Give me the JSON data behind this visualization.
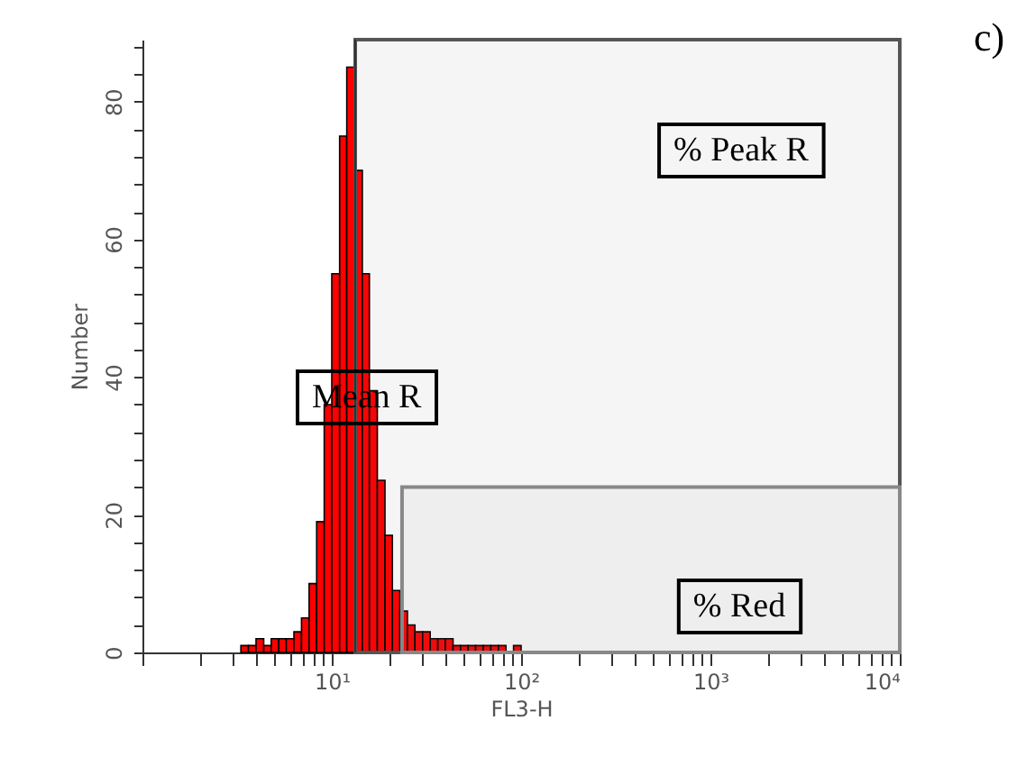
{
  "chart_data": {
    "type": "histogram",
    "xlabel": "FL3-H",
    "ylabel": "Number",
    "color": "#ff0000",
    "log": "x",
    "bins": [
      3.31,
      3.63,
      3.98,
      4.37,
      4.79,
      5.25,
      5.75,
      6.31,
      6.92,
      7.59,
      8.32,
      9.12,
      10.0,
      11.0,
      12.0,
      13.2,
      14.5,
      15.8,
      17.4,
      19.1,
      20.9,
      22.9,
      25.1,
      27.5,
      30.2,
      33.1,
      36.3,
      39.8,
      43.7,
      47.9,
      52.5,
      57.5,
      63.1,
      69.2,
      75.9,
      83.2,
      91.2,
      100
    ],
    "values": [
      1,
      1,
      2,
      1,
      2,
      2,
      2,
      3,
      5,
      10,
      19,
      36,
      55,
      75,
      85,
      70,
      55,
      38,
      25,
      17,
      9,
      6,
      4,
      3,
      3,
      2,
      2,
      2,
      1,
      1,
      1,
      1,
      1,
      1,
      1,
      0,
      1
    ],
    "xlim": [
      1,
      10000
    ],
    "ylim": [
      0,
      89
    ],
    "xticks": [
      {
        "value": 1,
        "label": null
      },
      {
        "value": 2,
        "label": null
      },
      {
        "value": 3,
        "label": null
      },
      {
        "value": 4,
        "label": null
      },
      {
        "value": 5,
        "label": null
      },
      {
        "value": 6,
        "label": null
      },
      {
        "value": 7,
        "label": null
      },
      {
        "value": 8,
        "label": null
      },
      {
        "value": 9,
        "label": null
      },
      {
        "value": 10,
        "label": "10¹"
      },
      {
        "value": 20,
        "label": null
      },
      {
        "value": 30,
        "label": null
      },
      {
        "value": 40,
        "label": null
      },
      {
        "value": 50,
        "label": null
      },
      {
        "value": 60,
        "label": null
      },
      {
        "value": 70,
        "label": null
      },
      {
        "value": 80,
        "label": null
      },
      {
        "value": 90,
        "label": null
      },
      {
        "value": 100,
        "label": "10²"
      },
      {
        "value": 200,
        "label": null
      },
      {
        "value": 300,
        "label": null
      },
      {
        "value": 400,
        "label": null
      },
      {
        "value": 500,
        "label": null
      },
      {
        "value": 600,
        "label": null
      },
      {
        "value": 700,
        "label": null
      },
      {
        "value": 800,
        "label": null
      },
      {
        "value": 900,
        "label": null
      },
      {
        "value": 1000,
        "label": "10³"
      },
      {
        "value": 2000,
        "label": null
      },
      {
        "value": 3000,
        "label": null
      },
      {
        "value": 4000,
        "label": null
      },
      {
        "value": 5000,
        "label": null
      },
      {
        "value": 6000,
        "label": null
      },
      {
        "value": 7000,
        "label": null
      },
      {
        "value": 8000,
        "label": null
      },
      {
        "value": 9000,
        "label": null
      },
      {
        "value": 10000,
        "label": "10⁴"
      }
    ],
    "yticks": [
      0,
      {
        "value": 4,
        "label": null
      },
      {
        "value": 8,
        "label": null
      },
      {
        "value": 12,
        "label": null
      },
      {
        "value": 16,
        "label": null
      },
      20,
      {
        "value": 24,
        "label": null
      },
      {
        "value": 28,
        "label": null
      },
      {
        "value": 32,
        "label": null
      },
      {
        "value": 36,
        "label": null
      },
      40,
      {
        "value": 44,
        "label": null
      },
      {
        "value": 48,
        "label": null
      },
      {
        "value": 52,
        "label": null
      },
      {
        "value": 56,
        "label": null
      },
      60,
      {
        "value": 64,
        "label": null
      },
      {
        "value": 68,
        "label": null
      },
      {
        "value": 72,
        "label": null
      },
      {
        "value": 76,
        "label": null
      },
      80,
      {
        "value": 84,
        "label": null
      },
      {
        "value": 88,
        "label": null
      }
    ],
    "ref_lines": [
      {
        "axis": "x",
        "value": 13.3,
        "label": "Mean R",
        "color": "#333333"
      }
    ],
    "bands": [
      {
        "axis": "x",
        "from": 13.3,
        "to": 10000,
        "label": "% Peak R",
        "color": "#555555"
      },
      {
        "axis": "x",
        "from": 23.5,
        "to": 10000,
        "label": "% Red",
        "color": "#888888"
      }
    ],
    "annotations": [
      "c)"
    ]
  }
}
